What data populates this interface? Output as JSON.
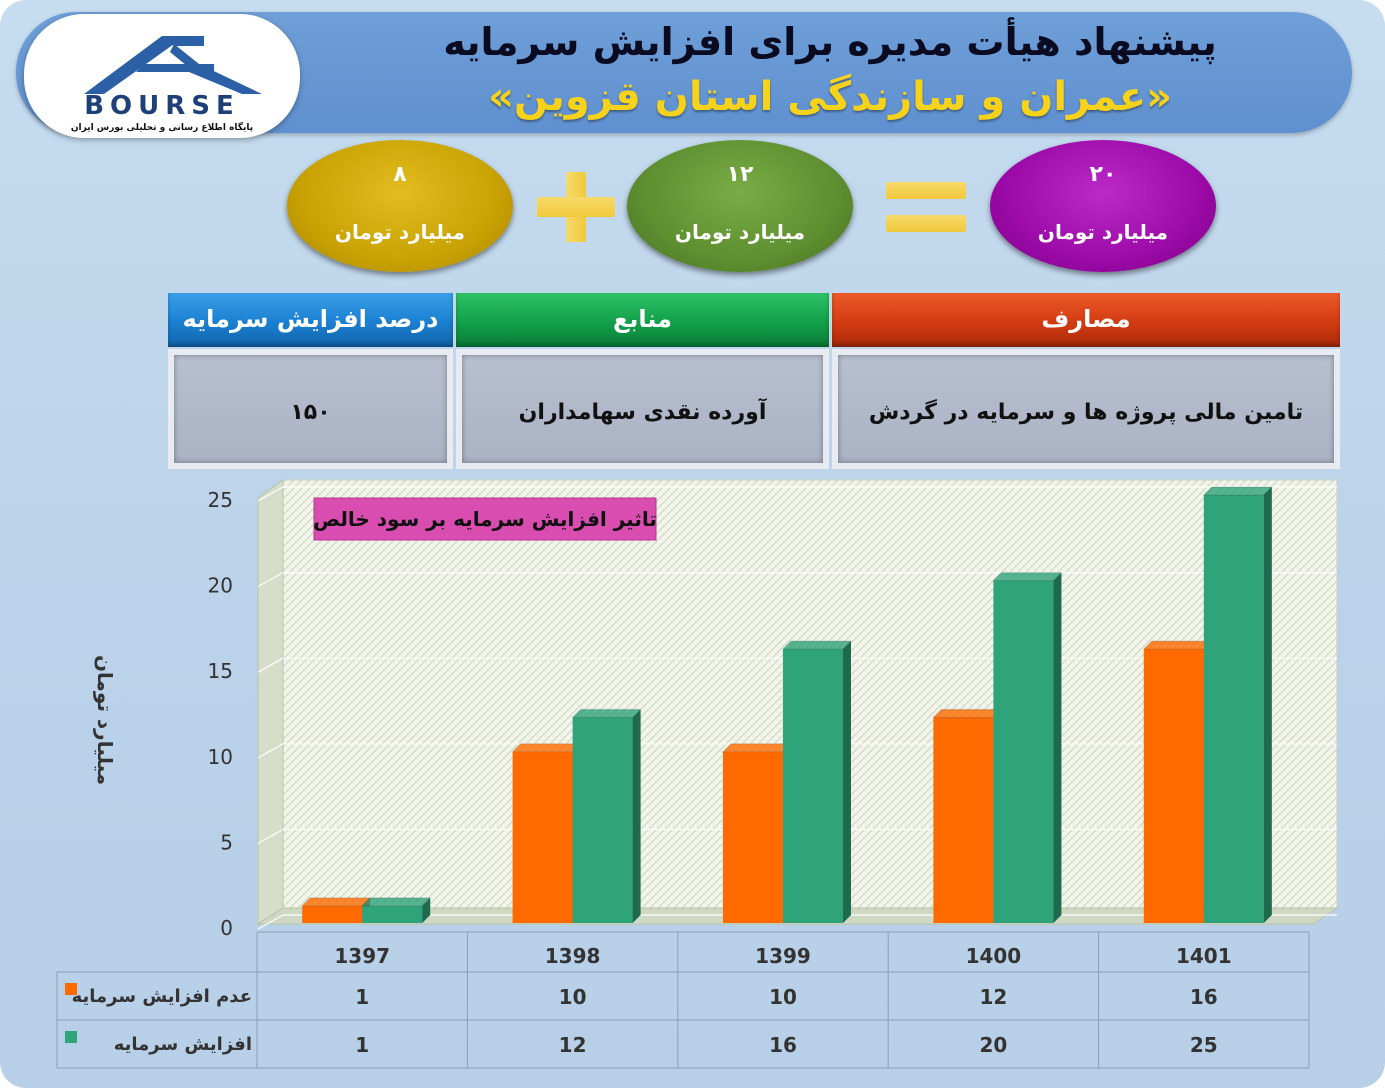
{
  "header": {
    "title": "پیشنهاد هیأت مدیره برای افزایش سرمایه",
    "subtitle": "«عمران و سازندگی استان قزوین»",
    "logo_text": "BOURSE",
    "logo_tagline": "پایگاه اطلاع رسانی و تحلیلی بورس ایران"
  },
  "summary": {
    "left": {
      "value": "۸",
      "unit": "میلیارد تومان",
      "color": "#c9a203"
    },
    "middle": {
      "value": "۱۲",
      "unit": "میلیارد تومان",
      "color": "#5e8f30"
    },
    "right": {
      "value": "۲۰",
      "unit": "میلیارد تومان",
      "color": "#9c0aa8"
    },
    "plus_symbol": "+",
    "equals_symbol": "="
  },
  "info_table": {
    "headers": {
      "percent": "درصد افزایش سرمایه",
      "sources": "منابع",
      "uses": "مصارف"
    },
    "values": {
      "percent": "۱۵۰",
      "sources": "آورده نقدی سهامداران",
      "uses": "تامین مالی پروژه ها و سرمایه در گردش"
    },
    "colors": {
      "percent": "#1a7fd1",
      "sources": "#12a04a",
      "uses": "#d23b12"
    }
  },
  "chart_data": {
    "type": "bar",
    "title": "تاثیر افزایش سرمایه بر سود خالص",
    "ylabel": "میلیارد تومان",
    "xlabel": "",
    "categories": [
      "1397",
      "1398",
      "1399",
      "1400",
      "1401"
    ],
    "series": [
      {
        "name": "عدم افزایش سرمایه",
        "values": [
          1,
          10,
          10,
          12,
          16
        ],
        "color": "#ff6a00"
      },
      {
        "name": "افزایش سرمایه",
        "values": [
          1,
          12,
          16,
          20,
          25
        ],
        "color": "#2fa37a"
      }
    ],
    "ylim": [
      0,
      25
    ],
    "yticks": [
      "0",
      "5",
      "10",
      "15",
      "20",
      "25"
    ],
    "grid": true,
    "data_table": true
  }
}
